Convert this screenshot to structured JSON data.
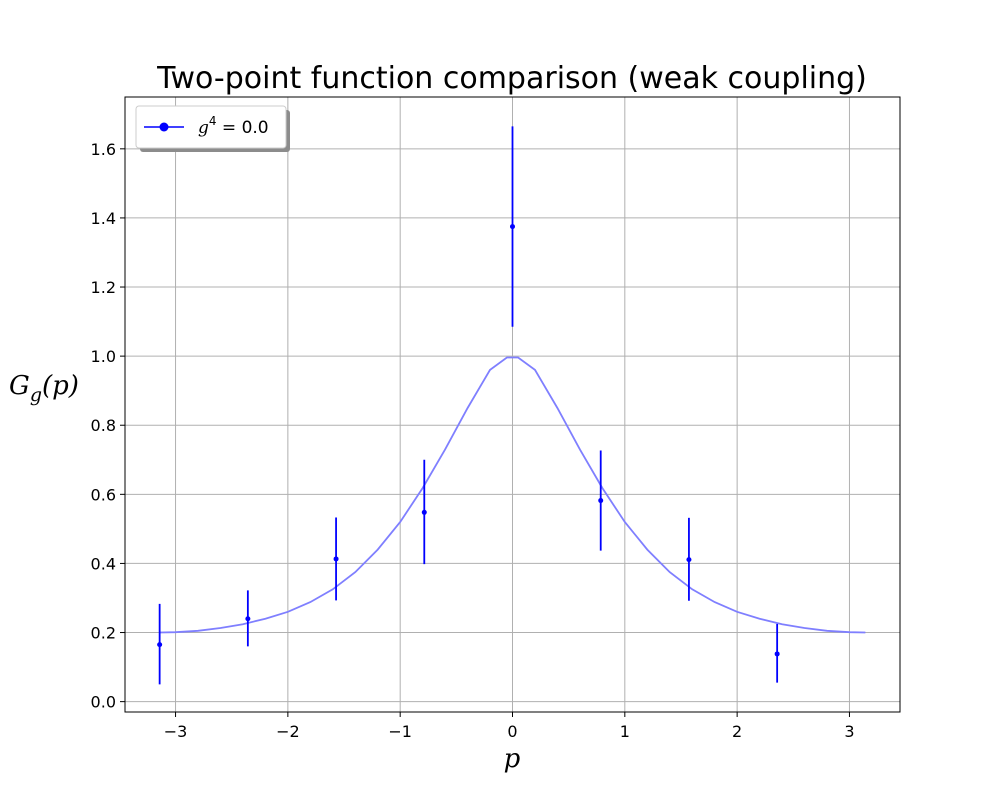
{
  "chart_data": {
    "type": "scatter",
    "title": "Two-point function comparison (weak coupling)",
    "xlabel": "p",
    "ylabel": "G_g(p)",
    "ylabel_main": "G",
    "ylabel_sub": "g",
    "ylabel_tail": "(p)",
    "xlim": [
      -3.45,
      3.45
    ],
    "ylim": [
      -0.03,
      1.75
    ],
    "xticks": [
      -3,
      -2,
      -1,
      0,
      1,
      2,
      3
    ],
    "xtick_labels": [
      "−3",
      "−2",
      "−1",
      "0",
      "1",
      "2",
      "3"
    ],
    "yticks": [
      0.0,
      0.2,
      0.4,
      0.6,
      0.8,
      1.0,
      1.2,
      1.4,
      1.6
    ],
    "ytick_labels": [
      "0.0",
      "0.2",
      "0.4",
      "0.6",
      "0.8",
      "1.0",
      "1.2",
      "1.4",
      "1.6"
    ],
    "grid": true,
    "legend_position": "top-left",
    "series": [
      {
        "name": "g⁴ = 0.0",
        "legend_base": "g",
        "legend_sup": "4",
        "legend_rest": " = 0.0",
        "kind": "errorbar",
        "color": "#0000ff",
        "x": [
          -3.1416,
          -2.3562,
          -1.5708,
          -0.7854,
          0.0,
          0.7854,
          1.5708,
          2.3562
        ],
        "y": [
          0.165,
          0.24,
          0.413,
          0.548,
          1.375,
          0.582,
          0.411,
          0.138
        ],
        "yerr_low": [
          0.05,
          0.16,
          0.293,
          0.398,
          1.085,
          0.437,
          0.292,
          0.055
        ],
        "yerr_high": [
          0.283,
          0.322,
          0.533,
          0.7,
          1.665,
          0.727,
          0.532,
          0.225
        ]
      },
      {
        "kind": "line",
        "color": "#7f7fff",
        "x": [
          -3.1416,
          -3.0,
          -2.8,
          -2.6,
          -2.4,
          -2.2,
          -2.0,
          -1.8,
          -1.6,
          -1.4,
          -1.2,
          -1.0,
          -0.8,
          -0.6,
          -0.4,
          -0.2,
          -0.05,
          0.05,
          0.2,
          0.4,
          0.6,
          0.8,
          1.0,
          1.2,
          1.4,
          1.6,
          1.8,
          2.0,
          2.2,
          2.4,
          2.6,
          2.8,
          3.0,
          3.1416
        ],
        "y": [
          0.2,
          0.201,
          0.205,
          0.213,
          0.224,
          0.24,
          0.26,
          0.288,
          0.325,
          0.375,
          0.44,
          0.52,
          0.618,
          0.73,
          0.85,
          0.96,
          0.996,
          0.996,
          0.96,
          0.85,
          0.73,
          0.618,
          0.52,
          0.44,
          0.375,
          0.325,
          0.288,
          0.26,
          0.24,
          0.224,
          0.213,
          0.205,
          0.201,
          0.2
        ]
      }
    ]
  }
}
